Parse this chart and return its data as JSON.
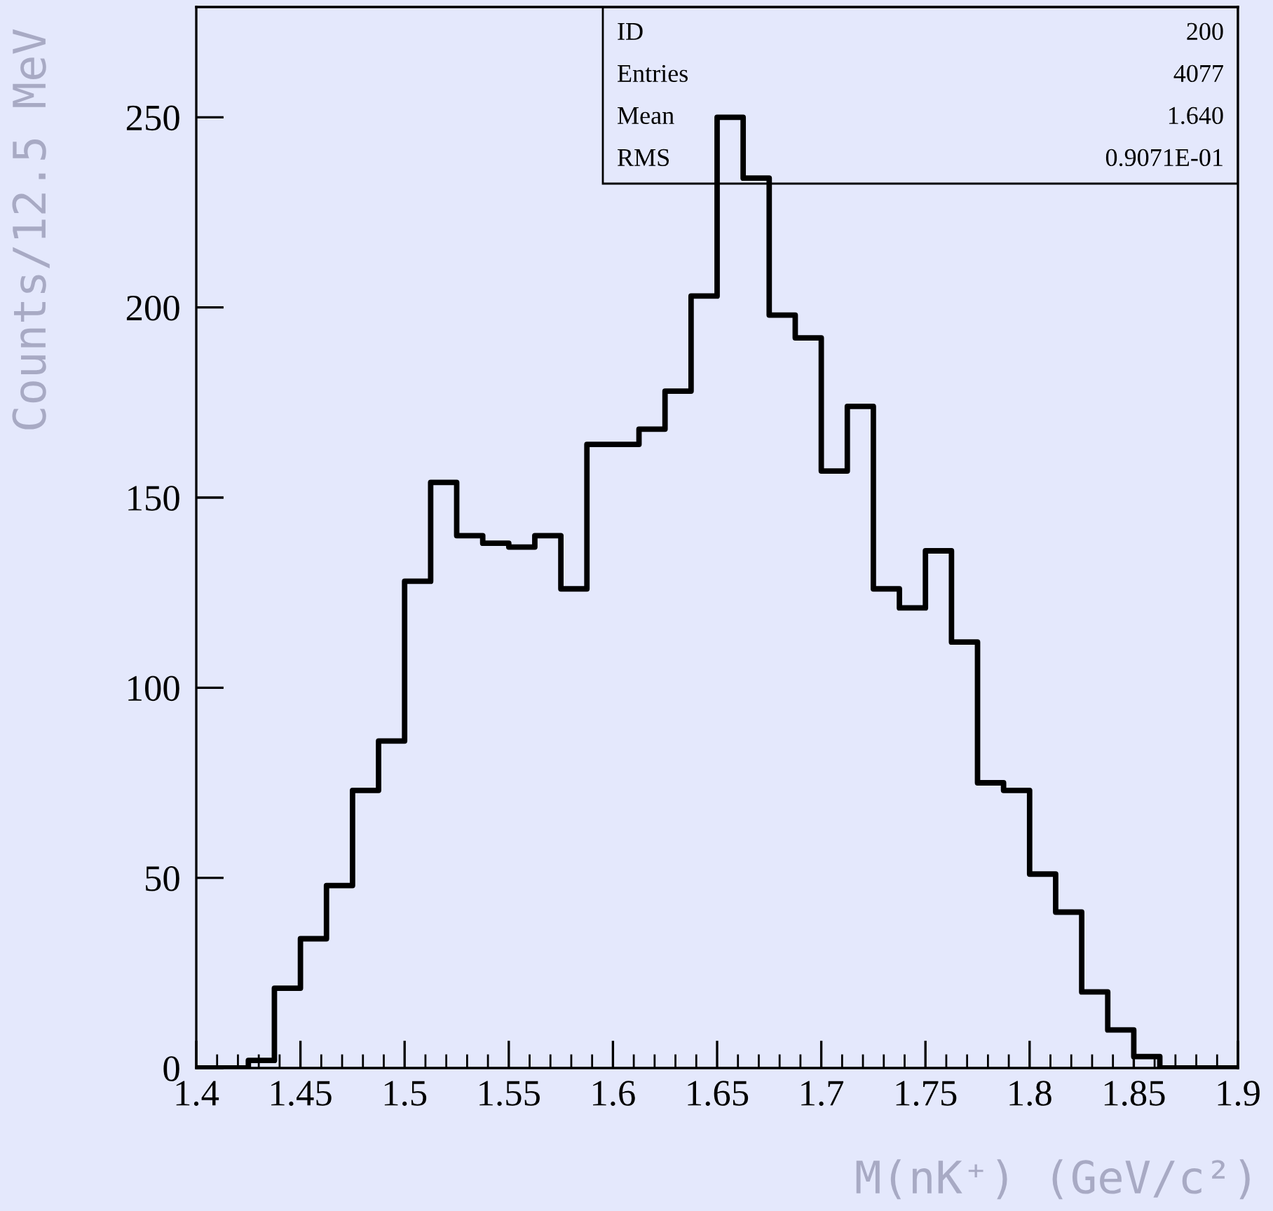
{
  "chart_data": {
    "type": "histogram",
    "xlabel": "M(nK⁺) (GeV/c²)",
    "ylabel": "Counts/12.5 MeV",
    "bins": [
      1.4,
      1.4125,
      1.425,
      1.4375,
      1.45,
      1.4625,
      1.475,
      1.4875,
      1.5,
      1.5125,
      1.525,
      1.5375,
      1.55,
      1.5625,
      1.575,
      1.5875,
      1.6,
      1.6125,
      1.625,
      1.6375,
      1.65,
      1.6625,
      1.675,
      1.6875,
      1.7,
      1.7125,
      1.725,
      1.7375,
      1.75,
      1.7625,
      1.775,
      1.7875,
      1.8,
      1.8125,
      1.825,
      1.8375,
      1.85,
      1.8625,
      1.875,
      1.8875,
      1.9
    ],
    "values": [
      0,
      0,
      2,
      21,
      34,
      48,
      73,
      86,
      128,
      154,
      140,
      138,
      137,
      140,
      126,
      164,
      164,
      168,
      178,
      203,
      250,
      234,
      198,
      192,
      157,
      174,
      126,
      121,
      136,
      112,
      75,
      73,
      51,
      41,
      20,
      10,
      3,
      0,
      0,
      0
    ],
    "color": "#000000",
    "xlim": [
      1.4,
      1.9
    ],
    "xticks": [
      1.4,
      1.45,
      1.5,
      1.55,
      1.6,
      1.65,
      1.7,
      1.75,
      1.8,
      1.85,
      1.9
    ],
    "ylim": [
      0,
      279
    ],
    "yticks": [
      0,
      50,
      100,
      150,
      200,
      250
    ],
    "grid": false,
    "annotations": [
      "ID",
      "200",
      "Entries",
      "4077",
      "Mean",
      "1.640",
      "RMS",
      "0.9071E-01"
    ]
  }
}
